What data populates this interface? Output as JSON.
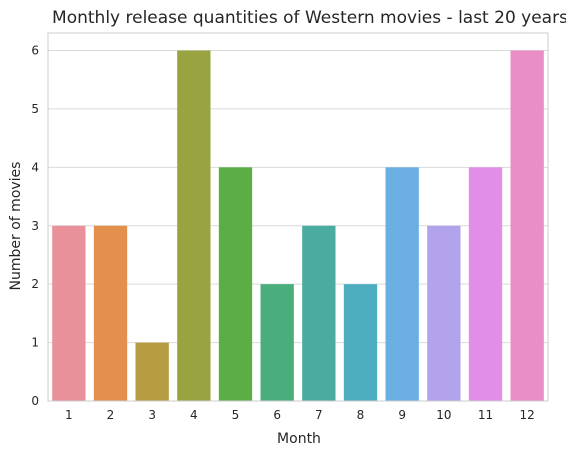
{
  "chart_data": {
    "type": "bar",
    "title": "Monthly release quantities of Western movies - last 20 years",
    "xlabel": "Month",
    "ylabel": "Number of movies",
    "categories": [
      "1",
      "2",
      "3",
      "4",
      "5",
      "6",
      "7",
      "8",
      "9",
      "10",
      "11",
      "12"
    ],
    "values": [
      3,
      3,
      1,
      6,
      4,
      2,
      3,
      2,
      4,
      3,
      4,
      6
    ],
    "ylim": [
      0,
      6.3
    ],
    "yticks": [
      "0",
      "1",
      "2",
      "3",
      "4",
      "5",
      "6"
    ],
    "grid": "horizontal",
    "colors": [
      "#e8919b",
      "#e3904d",
      "#b89c42",
      "#99a440",
      "#5bad45",
      "#4aae7c",
      "#4aaca0",
      "#4caebe",
      "#6aaee2",
      "#b2a3ec",
      "#e08ee8",
      "#ea8ec6"
    ]
  }
}
